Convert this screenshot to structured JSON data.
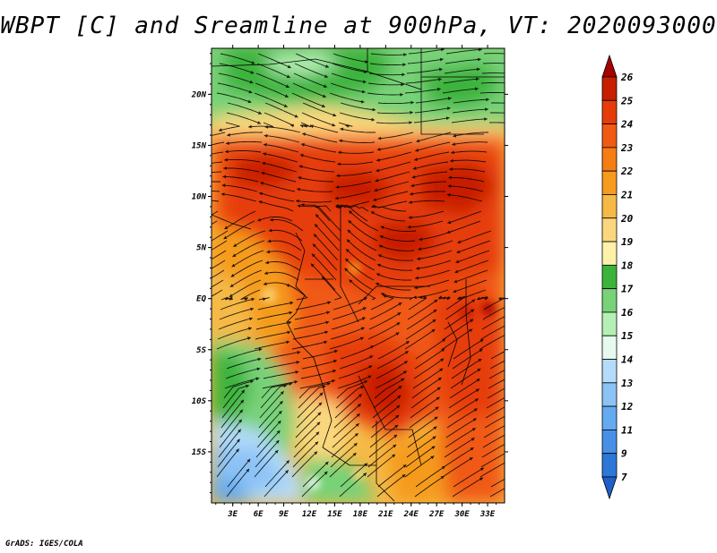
{
  "title": "WBPT [C] and Sreamline at 900hPa, VT: 2020093000",
  "credit": "GrADS: IGES/COLA",
  "map": {
    "lat_labels": [
      "20N",
      "15N",
      "10N",
      "5N",
      "EQ",
      "5S",
      "10S",
      "15S"
    ],
    "lon_labels": [
      "3E",
      "6E",
      "9E",
      "12E",
      "15E",
      "18E",
      "21E",
      "24E",
      "27E",
      "30E",
      "33E"
    ],
    "lat_values": [
      20,
      15,
      10,
      5,
      0,
      -5,
      -10,
      -15
    ],
    "lon_values": [
      3,
      6,
      9,
      12,
      15,
      18,
      21,
      24,
      27,
      30,
      33
    ],
    "lon_range": [
      0.5,
      35
    ],
    "lat_range": [
      -20,
      24.5
    ]
  },
  "colorbar": {
    "labels": [
      "26",
      "25",
      "24",
      "23",
      "22",
      "21",
      "20",
      "19",
      "18",
      "17",
      "16",
      "15",
      "14",
      "13",
      "12",
      "11",
      "9",
      "7"
    ],
    "colors": [
      "#a50000",
      "#c81e00",
      "#e63c0a",
      "#f05a14",
      "#f57d14",
      "#f59b1e",
      "#f5b946",
      "#fad77d",
      "#fff0aa",
      "#3cb43c",
      "#78d278",
      "#b4f0b4",
      "#e6faf0",
      "#b4dcfa",
      "#8cc3f5",
      "#64aaf0",
      "#4691e6",
      "#2d78d7",
      "#1e5fc8"
    ]
  }
}
